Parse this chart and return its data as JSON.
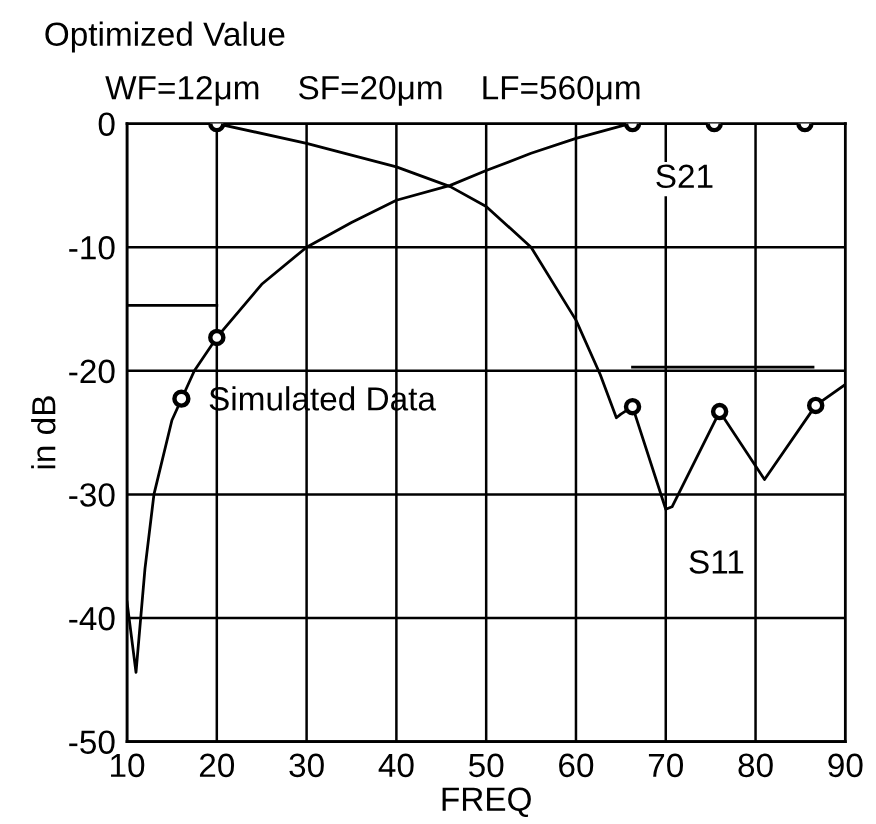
{
  "chart_data": {
    "type": "line",
    "title": "Optimized Value",
    "subtitle": "WF=12μm    SF=20μm    LF=560μm",
    "xlabel": "FREQ",
    "ylabel": "in dB",
    "xlim": [
      10,
      90
    ],
    "ylim": [
      -50,
      0
    ],
    "xticks": [
      10,
      20,
      30,
      40,
      50,
      60,
      70,
      80,
      90
    ],
    "yticks": [
      -50,
      -40,
      -30,
      -20,
      -10,
      0
    ],
    "grid": true,
    "legend": "center left",
    "line_style": "solid",
    "marker": "none",
    "series": [
      {
        "color": "#000000",
        "x": [
          10,
          11,
          12,
          13,
          15,
          17.5,
          20,
          25,
          30,
          35,
          40,
          46,
          50,
          55,
          60,
          66,
          75,
          85,
          90
        ],
        "values": [
          -38.7,
          -44.4,
          -36,
          -30,
          -24,
          -20,
          -17.3,
          -13,
          -10,
          -8,
          -6.2,
          -5,
          -3.8,
          -2.4,
          -1.2,
          0,
          0,
          0,
          0
        ]
      },
      {
        "color": "#000000",
        "x": [
          20,
          30,
          40,
          46,
          50,
          55,
          60,
          62.7,
          64.5,
          65,
          66.3,
          70,
          70.7,
          76,
          81,
          86.7,
          90
        ],
        "values": [
          0,
          -1.6,
          -3.5,
          -5.1,
          -6.7,
          -10,
          -15.9,
          -20.3,
          -23.8,
          -23.5,
          -22.9,
          -31.2,
          -31,
          -23.3,
          -28.8,
          -22.8,
          -21.1
        ]
      },
      {
        "color": "#000000",
        "x": [
          10,
          20
        ],
        "values": [
          -14.7,
          -14.7
        ]
      },
      {
        "color": "#000000",
        "x": [
          66.3,
          86.4
        ],
        "values": [
          -19.7,
          -19.7
        ]
      },
      {
        "type": "scatter",
        "name": "Simulated Data",
        "color": "#000000",
        "marker": "circle",
        "x": [
          20,
          66.3,
          75.4,
          85.5,
          20,
          66.3,
          76,
          86.7
        ],
        "values": [
          -17.3,
          0,
          0,
          0,
          0,
          -22.9,
          -23.3,
          -22.8
        ]
      }
    ],
    "annotations": [
      {
        "text": "S21",
        "x": 66.3,
        "y": 0
      },
      {
        "text": "S11",
        "x": 70,
        "y": -31.2
      }
    ]
  }
}
